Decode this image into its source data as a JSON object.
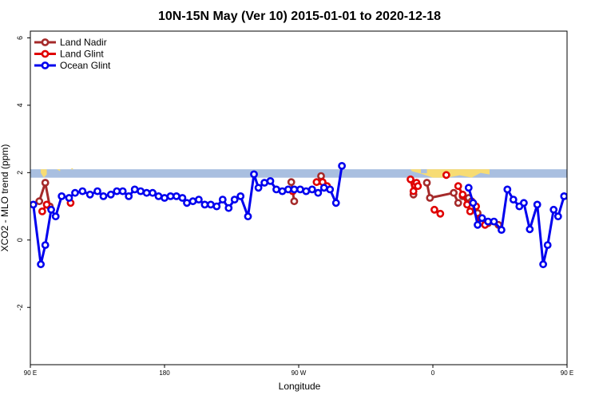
{
  "chart_data": {
    "type": "line",
    "title": "10N-15N May (Ver 10)   2015-01-01 to 2020-12-18",
    "xlabel": "Longitude",
    "ylabel": "XCO2 - MLO trend (ppm)",
    "xlim": [
      90,
      450
    ],
    "ylim": [
      -3.7,
      6.2
    ],
    "x_ticks": [
      {
        "value": 90,
        "label": "90 E"
      },
      {
        "value": 180,
        "label": "180"
      },
      {
        "value": 270,
        "label": "90 W"
      },
      {
        "value": 360,
        "label": "0"
      },
      {
        "value": 450,
        "label": "90 E"
      },
      {
        "value": 540,
        "label": "180"
      }
    ],
    "y_ticks": [
      {
        "value": -2,
        "label": "-2"
      },
      {
        "value": 0,
        "label": "0"
      },
      {
        "value": 2,
        "label": "2"
      },
      {
        "value": 4,
        "label": "4"
      },
      {
        "value": 6,
        "label": "6"
      }
    ],
    "legend_position": "top-left",
    "land_band": {
      "y_range": [
        1.85,
        2.1
      ],
      "ocean_color": "#a9bfe0",
      "land_color": "#f7dc74"
    },
    "series": [
      {
        "name": "Land Nadir",
        "color": "#a52a2a",
        "points": [
          [
            96,
            1.15
          ],
          [
            100,
            1.7
          ],
          [
            103,
            1.0
          ],
          [
            265,
            1.72
          ],
          [
            267,
            1.15
          ],
          [
            285,
            1.9
          ],
          [
            347,
            1.35
          ],
          [
            356,
            1.7
          ],
          [
            358,
            1.25
          ],
          [
            374,
            1.4
          ],
          [
            377,
            1.1
          ],
          [
            380,
            1.3
          ],
          [
            384,
            1.25
          ],
          [
            386,
            1.15
          ],
          [
            390,
            0.8
          ],
          [
            397,
            0.5
          ],
          [
            404,
            0.45
          ],
          [
            470,
            0.7
          ],
          [
            473,
            1.2
          ],
          [
            477,
            1.7
          ],
          [
            480,
            1.0
          ]
        ],
        "segments": [
          [
            0,
            2
          ],
          [
            3,
            4
          ],
          [
            7,
            10
          ]
        ]
      },
      {
        "name": "Land Glint",
        "color": "#e00000",
        "points": [
          [
            98,
            0.85
          ],
          [
            101,
            1.05
          ],
          [
            117,
            1.1
          ],
          [
            266,
            1.45
          ],
          [
            282,
            1.72
          ],
          [
            286,
            1.72
          ],
          [
            289,
            1.6
          ],
          [
            345,
            1.8
          ],
          [
            347,
            1.45
          ],
          [
            349,
            1.7
          ],
          [
            350,
            1.6
          ],
          [
            361,
            0.9
          ],
          [
            365,
            0.78
          ],
          [
            369,
            1.93
          ],
          [
            377,
            1.6
          ],
          [
            380,
            1.35
          ],
          [
            383,
            1.05
          ],
          [
            385,
            0.85
          ],
          [
            389,
            1.0
          ],
          [
            392,
            0.65
          ],
          [
            395,
            0.45
          ],
          [
            470,
            1.65
          ],
          [
            472,
            1.35
          ],
          [
            479,
            0.9
          ],
          [
            483,
            1.05
          ],
          [
            496,
            1.1
          ]
        ],
        "segments": [
          [
            0,
            1
          ],
          [
            4,
            6
          ],
          [
            7,
            10
          ],
          [
            11,
            12
          ],
          [
            14,
            18
          ],
          [
            19,
            20
          ],
          [
            21,
            22
          ]
        ]
      },
      {
        "name": "Ocean Glint",
        "color": "#0000ee",
        "points": [
          [
            92,
            1.05
          ],
          [
            97,
            -0.72
          ],
          [
            100,
            -0.15
          ],
          [
            104,
            0.9
          ],
          [
            107,
            0.7
          ],
          [
            111,
            1.3
          ],
          [
            116,
            1.25
          ],
          [
            120,
            1.4
          ],
          [
            125,
            1.45
          ],
          [
            130,
            1.35
          ],
          [
            135,
            1.45
          ],
          [
            139,
            1.3
          ],
          [
            144,
            1.35
          ],
          [
            148,
            1.45
          ],
          [
            152,
            1.45
          ],
          [
            156,
            1.3
          ],
          [
            160,
            1.5
          ],
          [
            164,
            1.45
          ],
          [
            168,
            1.4
          ],
          [
            172,
            1.4
          ],
          [
            176,
            1.3
          ],
          [
            180,
            1.25
          ],
          [
            184,
            1.3
          ],
          [
            188,
            1.3
          ],
          [
            192,
            1.25
          ],
          [
            195,
            1.1
          ],
          [
            199,
            1.15
          ],
          [
            203,
            1.2
          ],
          [
            207,
            1.05
          ],
          [
            211,
            1.05
          ],
          [
            215,
            1.0
          ],
          [
            219,
            1.2
          ],
          [
            223,
            0.95
          ],
          [
            227,
            1.2
          ],
          [
            231,
            1.3
          ],
          [
            236,
            0.7
          ],
          [
            240,
            1.95
          ],
          [
            243,
            1.55
          ],
          [
            247,
            1.7
          ],
          [
            251,
            1.75
          ],
          [
            255,
            1.5
          ],
          [
            259,
            1.45
          ],
          [
            263,
            1.5
          ],
          [
            267,
            1.5
          ],
          [
            271,
            1.5
          ],
          [
            275,
            1.45
          ],
          [
            279,
            1.5
          ],
          [
            283,
            1.4
          ],
          [
            287,
            1.55
          ],
          [
            291,
            1.5
          ],
          [
            295,
            1.1
          ],
          [
            299,
            2.2
          ],
          [
            384,
            1.55
          ],
          [
            387,
            1.1
          ],
          [
            390,
            0.45
          ],
          [
            393,
            0.65
          ],
          [
            397,
            0.55
          ],
          [
            401,
            0.55
          ],
          [
            406,
            0.3
          ],
          [
            410,
            1.5
          ],
          [
            414,
            1.2
          ],
          [
            418,
            1.0
          ],
          [
            421,
            1.1
          ],
          [
            425,
            0.32
          ],
          [
            430,
            1.05
          ],
          [
            434,
            -0.72
          ],
          [
            437,
            -0.15
          ],
          [
            441,
            0.9
          ],
          [
            444,
            0.7
          ],
          [
            448,
            1.3
          ],
          [
            452,
            1.25
          ],
          [
            456,
            1.4
          ],
          [
            460,
            1.45
          ],
          [
            464,
            1.35
          ],
          [
            468,
            1.45
          ],
          [
            473,
            1.3
          ],
          [
            477,
            1.35
          ],
          [
            481,
            1.45
          ],
          [
            485,
            1.45
          ],
          [
            489,
            1.3
          ],
          [
            493,
            1.5
          ],
          [
            497,
            1.45
          ]
        ],
        "segments": [
          [
            0,
            51
          ],
          [
            52,
            81
          ]
        ]
      }
    ]
  }
}
